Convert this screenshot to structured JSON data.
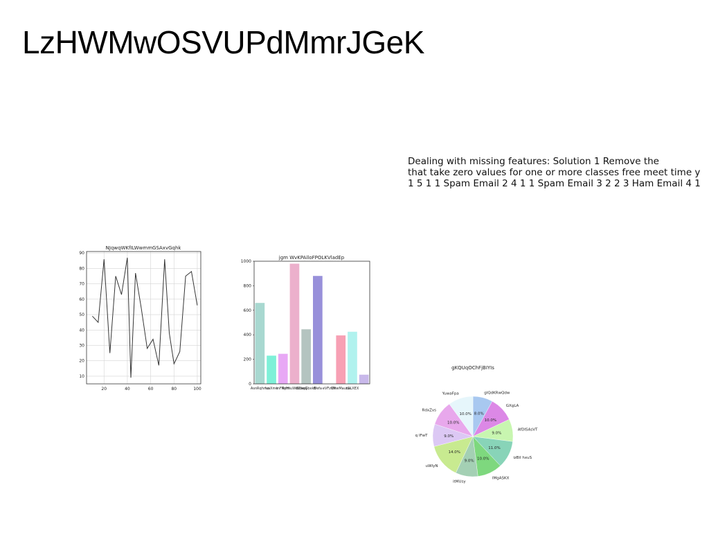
{
  "slide": {
    "title": "LzHWMwOSVUPdMmrJGeK",
    "text_lines": [
      "Dealing with missing features: Solution 1 Remove the",
      "that take zero values for one or more classes free meet time y",
      "1 5 1 1 Spam Email 2 4 1 1 Spam Email 3 2 2 3 Ham Email 4 1"
    ]
  },
  "chart_data": [
    {
      "type": "line",
      "title": "NJqwqWKfILWwmmGSAxvGqhk",
      "x": [
        10,
        15,
        20,
        25,
        30,
        35,
        40,
        43,
        47,
        52,
        57,
        62,
        67,
        72,
        76,
        80,
        85,
        90,
        95,
        100
      ],
      "series": [
        {
          "values": [
            49,
            45,
            86,
            25,
            75,
            63,
            87,
            9,
            77,
            54,
            28,
            34,
            17,
            86,
            38,
            18,
            26,
            75,
            78,
            56
          ]
        }
      ],
      "xlim": [
        5,
        103
      ],
      "ylim": [
        5,
        91
      ],
      "xticks": [
        20,
        40,
        60,
        80,
        100
      ],
      "yticks": [
        10,
        20,
        30,
        40,
        50,
        60,
        70,
        80,
        90
      ],
      "grid": true,
      "line_color": "#333333"
    },
    {
      "type": "bar",
      "title": "jgm WvKPAlloFPOLKVladEp",
      "categories": [
        "AsnRqhmo",
        "lvaXme",
        "tnFNyHI",
        "PrfrnuWokdepJ",
        "EZaeGbxkE",
        "iVefa",
        "eVFzCN",
        "WrwMauoo",
        "tGLXEX",
        ""
      ],
      "values": [
        660,
        230,
        245,
        980,
        445,
        880,
        0,
        395,
        425,
        75
      ],
      "ylim": [
        0,
        1000
      ],
      "yticks": [
        0,
        200,
        400,
        600,
        800,
        1000
      ],
      "colors": [
        "#a8d8d0",
        "#7ef0d8",
        "#e8a8f5",
        "#ecb0cc",
        "#b4c4c0",
        "#9890da",
        "#ffffff",
        "#f7a0b4",
        "#b0f2ee",
        "#c8b8ea"
      ]
    },
    {
      "type": "pie",
      "title": "gKQUqOChFjBIYIs",
      "labels": [
        "glQdKRwQdw",
        "GXgLA",
        "AfDISAsVT",
        "izBil hxuS",
        "IMgASKX",
        "itMUsy",
        "uWlyN",
        "q IFwT",
        "RdxZvs",
        "YuwaFpa"
      ],
      "values": [
        8.0,
        10.0,
        9.0,
        11.0,
        10.0,
        9.0,
        14.0,
        9.0,
        10.0,
        10.0
      ],
      "value_labels": [
        "8.0%",
        "10.0%",
        "9.0%",
        "11.0%",
        "10.0%",
        "9.0%",
        "14.0%",
        "9.0%",
        "10.0%",
        "10.0%"
      ],
      "colors": [
        "#a8c8f0",
        "#dc88e6",
        "#c8f6b0",
        "#88d4b8",
        "#7ed87e",
        "#a4d0b4",
        "#c8ea90",
        "#dcc8f4",
        "#e8a8ec",
        "#e6f6fb"
      ]
    }
  ]
}
